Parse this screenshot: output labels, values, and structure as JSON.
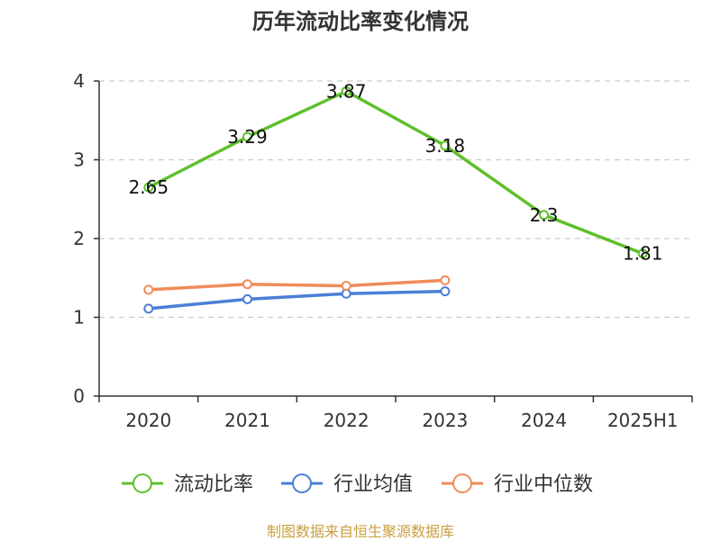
{
  "chart_data": {
    "type": "line",
    "title": "历年流动比率变化情况",
    "categories": [
      "2020",
      "2021",
      "2022",
      "2023",
      "2024",
      "2025H1"
    ],
    "ylim": [
      0,
      4
    ],
    "yticks": [
      "0",
      "1",
      "2",
      "3",
      "4"
    ],
    "grid": true,
    "legend_position": "bottom",
    "series": [
      {
        "name": "流动比率",
        "color": "#5ec02c",
        "values": [
          2.65,
          3.29,
          3.87,
          3.18,
          2.3,
          1.81
        ],
        "labels": [
          "2.65",
          "3.29",
          "3.87",
          "3.18",
          "2.3",
          "1.81"
        ]
      },
      {
        "name": "行业均值",
        "color": "#4a7fd6",
        "values": [
          1.11,
          1.23,
          1.3,
          1.33,
          null,
          null
        ]
      },
      {
        "name": "行业中位数",
        "color": "#f08c5a",
        "values": [
          1.35,
          1.42,
          1.4,
          1.47,
          null,
          null
        ]
      }
    ]
  },
  "source": "制图数据来自恒生聚源数据库"
}
